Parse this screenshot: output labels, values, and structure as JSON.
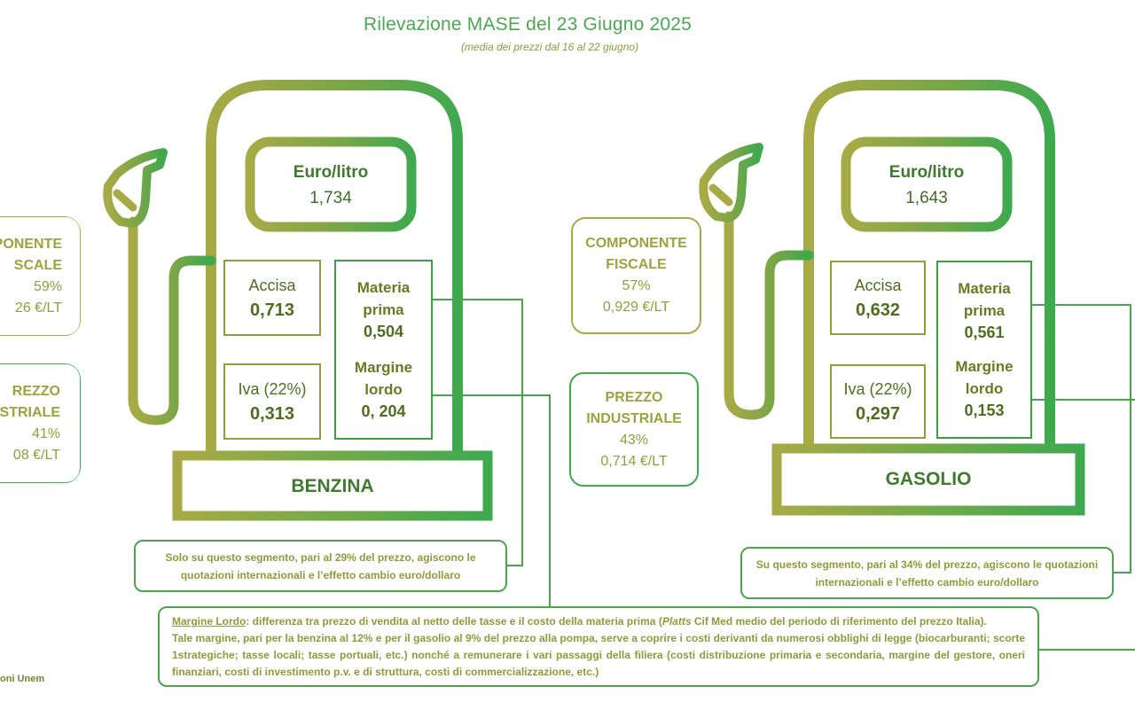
{
  "header": {
    "title": "Rilevazione MASE del 23 Giugno 2025",
    "subtitle": "(media dei prezzi dal 16 al 22 giugno)"
  },
  "benzina": {
    "price_label": "Euro/litro",
    "price_value": "1,734",
    "accisa_label": "Accisa",
    "accisa_value": "0,713",
    "iva_label": "Iva (22%)",
    "iva_value": "0,313",
    "materia_label_1": "Materia",
    "materia_label_2": "prima",
    "materia_value": "0,504",
    "margine_label_1": "Margine",
    "margine_label_2": "lordo",
    "margine_value": "0, 204",
    "fuel_name": "BENZINA",
    "fiscale_line1": "PONENTE",
    "fiscale_line2": "SCALE",
    "fiscale_pct": "59%",
    "fiscale_value": "26 €/LT",
    "industriale_line1": "REZZO",
    "industriale_line2": "USTRIALE",
    "industriale_pct": "41%",
    "industriale_value": "08 €/LT",
    "note": "Solo su questo segmento, pari al 29% del prezzo, agiscono le quotazioni internazionali e l’effetto cambio euro/dollaro"
  },
  "gasolio": {
    "price_label": "Euro/litro",
    "price_value": "1,643",
    "accisa_label": "Accisa",
    "accisa_value": "0,632",
    "iva_label": "Iva (22%)",
    "iva_value": "0,297",
    "materia_label_1": "Materia",
    "materia_label_2": "prima",
    "materia_value": "0,561",
    "margine_label_1": "Margine",
    "margine_label_2": "lordo",
    "margine_value": "0,153",
    "fuel_name": "GASOLIO",
    "fiscale_line1": "COMPONENTE",
    "fiscale_line2": "FISCALE",
    "fiscale_pct": "57%",
    "fiscale_value": "0,929 €/LT",
    "industriale_line1": "PREZZO",
    "industriale_line2": "INDUSTRIALE",
    "industriale_pct": "43%",
    "industriale_value": "0,714 €/LT",
    "note": "Su questo segmento, pari al 34% del prezzo, agiscono le quotazioni internazionali e l’effetto cambio euro/dollaro"
  },
  "margin_note": {
    "term": "Margine Lordo",
    "line1": ": differenza tra prezzo di vendita al netto delle tasse e il costo della materia prima (",
    "platts": "Platts",
    "line1b": " Cif Med medio del periodo di riferimento del prezzo Italia).",
    "rest": "Tale margine, pari per la benzina al 12% e per il gasolio al 9% del prezzo alla pompa, serve a coprire i costi derivanti da numerosi obblighi di legge (biocarburanti; scorte 1strategiche; tasse locali; tasse portuali, etc.) nonché a remunerare i vari passaggi della filiera (costi distribuzione primaria e secondaria, margine del gestore, oneri finanziari, costi di investimento p.v. e di struttura, costi di commercializzazione, etc.)"
  },
  "credit": "oni Unem",
  "colors": {
    "olive": "#a7ab45",
    "green": "#3faa4f",
    "dark_green": "#3f7a2e"
  }
}
